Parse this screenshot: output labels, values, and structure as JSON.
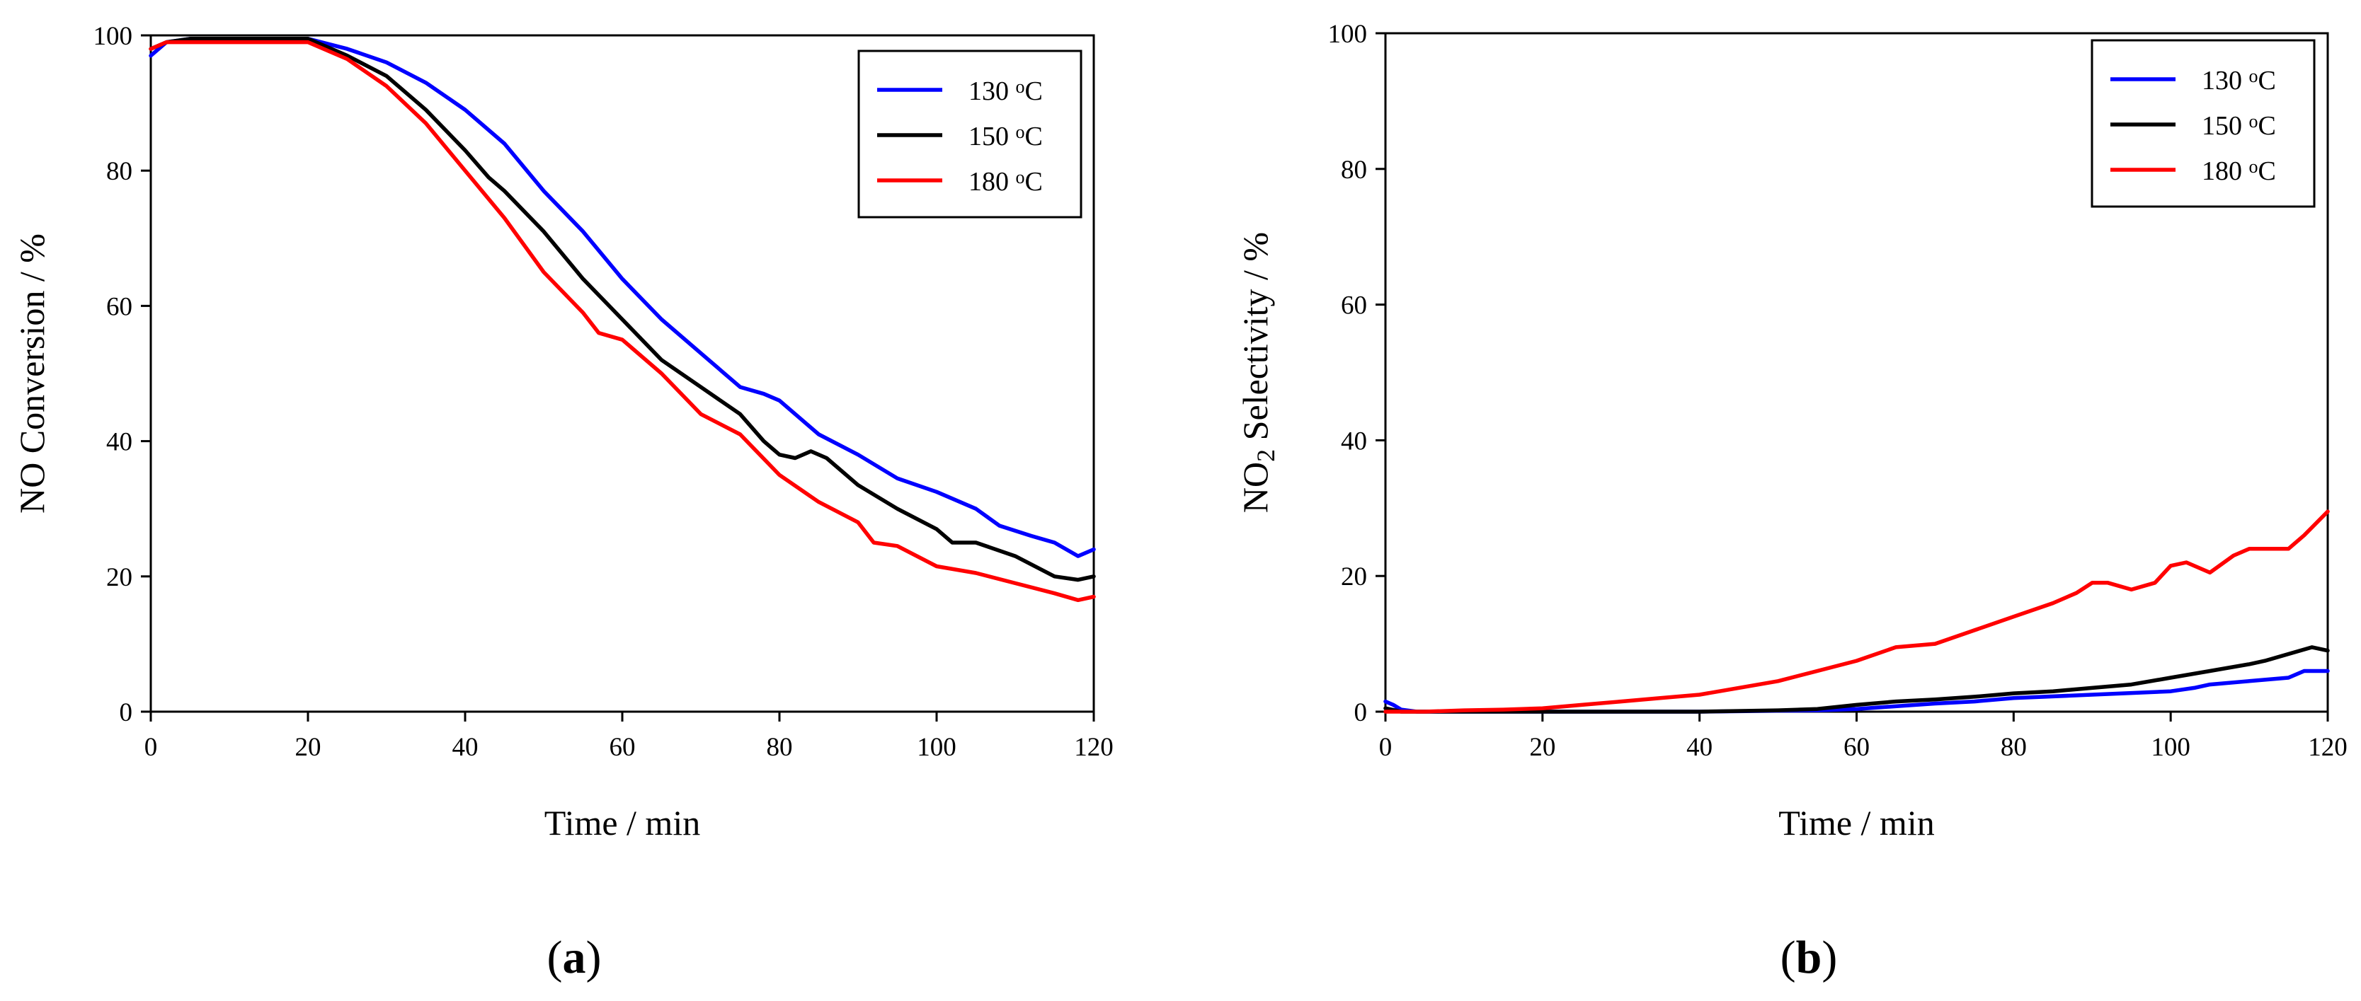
{
  "figure": {
    "panel_a_label": "(a)",
    "panel_b_label": "(b)"
  },
  "chart_data": [
    {
      "type": "line",
      "panel": "(a)",
      "title": "",
      "xlabel": "Time / min",
      "ylabel": "NO Conversion / %",
      "xlim": [
        0,
        120
      ],
      "ylim": [
        0,
        100
      ],
      "xticks": [
        0,
        20,
        40,
        60,
        80,
        100,
        120
      ],
      "yticks": [
        0,
        20,
        40,
        60,
        80,
        100
      ],
      "grid": false,
      "legend_position": "top-right",
      "series": [
        {
          "name": "130 °C",
          "label_main": "130 ",
          "label_sup": "o",
          "label_unit": "C",
          "color": "#0000ff",
          "x": [
            0,
            2,
            5,
            10,
            15,
            20,
            25,
            30,
            35,
            40,
            45,
            50,
            55,
            60,
            65,
            70,
            75,
            78,
            80,
            85,
            90,
            95,
            100,
            105,
            108,
            112,
            115,
            118,
            120
          ],
          "y": [
            97,
            99,
            99.5,
            99.5,
            99.5,
            99.5,
            98,
            96,
            93,
            89,
            84,
            77,
            71,
            64,
            58,
            53,
            48,
            47,
            46,
            41,
            38,
            34.5,
            32.5,
            30,
            27.5,
            26,
            25,
            23,
            24
          ]
        },
        {
          "name": "150 °C",
          "label_main": "150 ",
          "label_sup": "o",
          "label_unit": "C",
          "color": "#000000",
          "x": [
            0,
            2,
            5,
            10,
            15,
            20,
            25,
            30,
            35,
            40,
            43,
            45,
            50,
            55,
            60,
            65,
            70,
            75,
            78,
            80,
            82,
            84,
            86,
            90,
            95,
            100,
            102,
            105,
            110,
            115,
            118,
            120
          ],
          "y": [
            98,
            99,
            99.5,
            99.5,
            99.5,
            99.5,
            97,
            94,
            89,
            83,
            79,
            77,
            71,
            64,
            58,
            52,
            48,
            44,
            40,
            38,
            37.5,
            38.5,
            37.5,
            33.5,
            30,
            27,
            25,
            25,
            23,
            20,
            19.5,
            20
          ]
        },
        {
          "name": "180 °C",
          "label_main": "180 ",
          "label_sup": "o",
          "label_unit": "C",
          "color": "#ff0000",
          "x": [
            0,
            2,
            5,
            10,
            15,
            20,
            25,
            30,
            35,
            40,
            45,
            50,
            55,
            57,
            60,
            65,
            70,
            75,
            80,
            85,
            90,
            92,
            95,
            100,
            105,
            110,
            115,
            118,
            120
          ],
          "y": [
            98,
            99,
            99,
            99,
            99,
            99,
            96.5,
            92.5,
            87,
            80,
            73,
            65,
            59,
            56,
            55,
            50,
            44,
            41,
            35,
            31,
            28,
            25,
            24.5,
            21.5,
            20.5,
            19,
            17.5,
            16.5,
            17
          ]
        }
      ]
    },
    {
      "type": "line",
      "panel": "(b)",
      "title": "",
      "xlabel": "Time / min",
      "ylabel_main": "NO",
      "ylabel_sub": "2",
      "ylabel_rest": " Selectivity / %",
      "xlim": [
        0,
        120
      ],
      "ylim": [
        0,
        100
      ],
      "xticks": [
        0,
        20,
        40,
        60,
        80,
        100,
        120
      ],
      "yticks": [
        0,
        20,
        40,
        60,
        80,
        100
      ],
      "grid": false,
      "legend_position": "top-right",
      "series": [
        {
          "name": "130 °C",
          "label_main": "130 ",
          "label_sup": "o",
          "label_unit": "C",
          "color": "#0000ff",
          "x": [
            0,
            1,
            2,
            4,
            10,
            20,
            40,
            55,
            60,
            70,
            75,
            80,
            90,
            100,
            103,
            105,
            110,
            115,
            117,
            120
          ],
          "y": [
            1.5,
            1,
            0.3,
            0,
            0,
            0,
            0,
            0.2,
            0.4,
            1.2,
            1.5,
            2,
            2.5,
            3,
            3.5,
            4,
            4.5,
            5,
            6,
            6
          ]
        },
        {
          "name": "150 °C",
          "label_main": "150 ",
          "label_sup": "o",
          "label_unit": "C",
          "color": "#000000",
          "x": [
            0,
            2,
            10,
            20,
            30,
            40,
            50,
            55,
            60,
            65,
            70,
            75,
            80,
            85,
            90,
            95,
            100,
            105,
            110,
            112,
            115,
            118,
            120
          ],
          "y": [
            0.5,
            0,
            0,
            0,
            0,
            0,
            0.2,
            0.4,
            1,
            1.5,
            1.8,
            2.2,
            2.7,
            3,
            3.5,
            4,
            5,
            6,
            7,
            7.5,
            8.5,
            9.5,
            9
          ]
        },
        {
          "name": "180 °C",
          "label_main": "180 ",
          "label_sup": "o",
          "label_unit": "C",
          "color": "#ff0000",
          "x": [
            0,
            2,
            5,
            10,
            15,
            20,
            25,
            30,
            35,
            40,
            45,
            50,
            55,
            60,
            65,
            70,
            75,
            80,
            85,
            88,
            90,
            92,
            95,
            98,
            100,
            102,
            105,
            108,
            110,
            115,
            117,
            120
          ],
          "y": [
            0,
            0,
            0,
            0.2,
            0.3,
            0.5,
            1,
            1.5,
            2,
            2.5,
            3.5,
            4.5,
            6,
            7.5,
            9.5,
            10,
            12,
            14,
            16,
            17.5,
            19,
            19,
            18,
            19,
            21.5,
            22,
            20.5,
            23,
            24,
            24,
            26,
            29.5
          ]
        }
      ]
    }
  ]
}
